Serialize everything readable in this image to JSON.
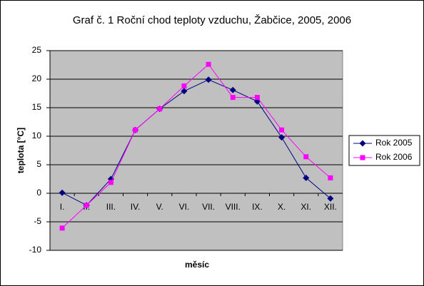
{
  "chart_data": {
    "type": "line",
    "title": "Graf č. 1 Roční chod teploty vzduchu, Žabčice, 2005, 2006",
    "x_label": "měsíc",
    "y_label": "teplota [°C]",
    "categories": [
      "I.",
      "II.",
      "III.",
      "IV.",
      "V.",
      "VI.",
      "VII.",
      "VIII.",
      "IX.",
      "X.",
      "XI.",
      "XII."
    ],
    "series": [
      {
        "name": "Rok 2005",
        "color": "#000080",
        "marker": "diamond",
        "values": [
          0.1,
          -2.1,
          2.5,
          11.1,
          14.8,
          17.9,
          19.9,
          18.1,
          16.1,
          9.8,
          2.7,
          -0.9
        ]
      },
      {
        "name": "Rok 2006",
        "color": "#ff00ff",
        "marker": "square",
        "values": [
          -6.1,
          -2.1,
          1.9,
          11.1,
          14.8,
          18.8,
          22.6,
          16.8,
          16.8,
          11.1,
          6.4,
          2.7
        ]
      }
    ],
    "ylim": [
      -10,
      25
    ],
    "yticks": [
      -10,
      -5,
      0,
      5,
      10,
      15,
      20,
      25
    ],
    "grid": true,
    "legend": "right"
  }
}
